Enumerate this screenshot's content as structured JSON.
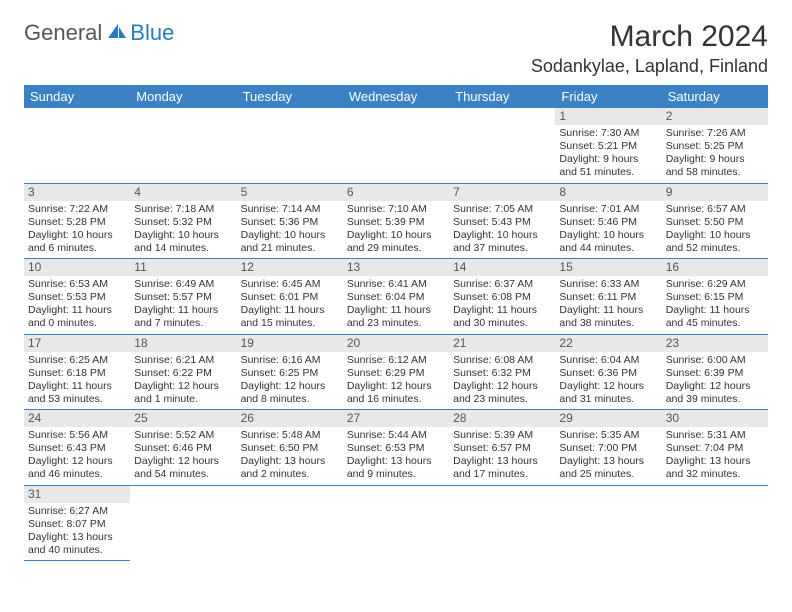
{
  "logo": {
    "part1": "General",
    "part2": "Blue"
  },
  "title": "March 2024",
  "location": "Sodankylae, Lapland, Finland",
  "colors": {
    "accent": "#3b82c4",
    "daynum_bg": "#e8e8e8",
    "text": "#333333"
  },
  "day_headers": [
    "Sunday",
    "Monday",
    "Tuesday",
    "Wednesday",
    "Thursday",
    "Friday",
    "Saturday"
  ],
  "weeks": [
    [
      null,
      null,
      null,
      null,
      null,
      {
        "n": "1",
        "sr": "Sunrise: 7:30 AM",
        "ss": "Sunset: 5:21 PM",
        "d1": "Daylight: 9 hours",
        "d2": "and 51 minutes."
      },
      {
        "n": "2",
        "sr": "Sunrise: 7:26 AM",
        "ss": "Sunset: 5:25 PM",
        "d1": "Daylight: 9 hours",
        "d2": "and 58 minutes."
      }
    ],
    [
      {
        "n": "3",
        "sr": "Sunrise: 7:22 AM",
        "ss": "Sunset: 5:28 PM",
        "d1": "Daylight: 10 hours",
        "d2": "and 6 minutes."
      },
      {
        "n": "4",
        "sr": "Sunrise: 7:18 AM",
        "ss": "Sunset: 5:32 PM",
        "d1": "Daylight: 10 hours",
        "d2": "and 14 minutes."
      },
      {
        "n": "5",
        "sr": "Sunrise: 7:14 AM",
        "ss": "Sunset: 5:36 PM",
        "d1": "Daylight: 10 hours",
        "d2": "and 21 minutes."
      },
      {
        "n": "6",
        "sr": "Sunrise: 7:10 AM",
        "ss": "Sunset: 5:39 PM",
        "d1": "Daylight: 10 hours",
        "d2": "and 29 minutes."
      },
      {
        "n": "7",
        "sr": "Sunrise: 7:05 AM",
        "ss": "Sunset: 5:43 PM",
        "d1": "Daylight: 10 hours",
        "d2": "and 37 minutes."
      },
      {
        "n": "8",
        "sr": "Sunrise: 7:01 AM",
        "ss": "Sunset: 5:46 PM",
        "d1": "Daylight: 10 hours",
        "d2": "and 44 minutes."
      },
      {
        "n": "9",
        "sr": "Sunrise: 6:57 AM",
        "ss": "Sunset: 5:50 PM",
        "d1": "Daylight: 10 hours",
        "d2": "and 52 minutes."
      }
    ],
    [
      {
        "n": "10",
        "sr": "Sunrise: 6:53 AM",
        "ss": "Sunset: 5:53 PM",
        "d1": "Daylight: 11 hours",
        "d2": "and 0 minutes."
      },
      {
        "n": "11",
        "sr": "Sunrise: 6:49 AM",
        "ss": "Sunset: 5:57 PM",
        "d1": "Daylight: 11 hours",
        "d2": "and 7 minutes."
      },
      {
        "n": "12",
        "sr": "Sunrise: 6:45 AM",
        "ss": "Sunset: 6:01 PM",
        "d1": "Daylight: 11 hours",
        "d2": "and 15 minutes."
      },
      {
        "n": "13",
        "sr": "Sunrise: 6:41 AM",
        "ss": "Sunset: 6:04 PM",
        "d1": "Daylight: 11 hours",
        "d2": "and 23 minutes."
      },
      {
        "n": "14",
        "sr": "Sunrise: 6:37 AM",
        "ss": "Sunset: 6:08 PM",
        "d1": "Daylight: 11 hours",
        "d2": "and 30 minutes."
      },
      {
        "n": "15",
        "sr": "Sunrise: 6:33 AM",
        "ss": "Sunset: 6:11 PM",
        "d1": "Daylight: 11 hours",
        "d2": "and 38 minutes."
      },
      {
        "n": "16",
        "sr": "Sunrise: 6:29 AM",
        "ss": "Sunset: 6:15 PM",
        "d1": "Daylight: 11 hours",
        "d2": "and 45 minutes."
      }
    ],
    [
      {
        "n": "17",
        "sr": "Sunrise: 6:25 AM",
        "ss": "Sunset: 6:18 PM",
        "d1": "Daylight: 11 hours",
        "d2": "and 53 minutes."
      },
      {
        "n": "18",
        "sr": "Sunrise: 6:21 AM",
        "ss": "Sunset: 6:22 PM",
        "d1": "Daylight: 12 hours",
        "d2": "and 1 minute."
      },
      {
        "n": "19",
        "sr": "Sunrise: 6:16 AM",
        "ss": "Sunset: 6:25 PM",
        "d1": "Daylight: 12 hours",
        "d2": "and 8 minutes."
      },
      {
        "n": "20",
        "sr": "Sunrise: 6:12 AM",
        "ss": "Sunset: 6:29 PM",
        "d1": "Daylight: 12 hours",
        "d2": "and 16 minutes."
      },
      {
        "n": "21",
        "sr": "Sunrise: 6:08 AM",
        "ss": "Sunset: 6:32 PM",
        "d1": "Daylight: 12 hours",
        "d2": "and 23 minutes."
      },
      {
        "n": "22",
        "sr": "Sunrise: 6:04 AM",
        "ss": "Sunset: 6:36 PM",
        "d1": "Daylight: 12 hours",
        "d2": "and 31 minutes."
      },
      {
        "n": "23",
        "sr": "Sunrise: 6:00 AM",
        "ss": "Sunset: 6:39 PM",
        "d1": "Daylight: 12 hours",
        "d2": "and 39 minutes."
      }
    ],
    [
      {
        "n": "24",
        "sr": "Sunrise: 5:56 AM",
        "ss": "Sunset: 6:43 PM",
        "d1": "Daylight: 12 hours",
        "d2": "and 46 minutes."
      },
      {
        "n": "25",
        "sr": "Sunrise: 5:52 AM",
        "ss": "Sunset: 6:46 PM",
        "d1": "Daylight: 12 hours",
        "d2": "and 54 minutes."
      },
      {
        "n": "26",
        "sr": "Sunrise: 5:48 AM",
        "ss": "Sunset: 6:50 PM",
        "d1": "Daylight: 13 hours",
        "d2": "and 2 minutes."
      },
      {
        "n": "27",
        "sr": "Sunrise: 5:44 AM",
        "ss": "Sunset: 6:53 PM",
        "d1": "Daylight: 13 hours",
        "d2": "and 9 minutes."
      },
      {
        "n": "28",
        "sr": "Sunrise: 5:39 AM",
        "ss": "Sunset: 6:57 PM",
        "d1": "Daylight: 13 hours",
        "d2": "and 17 minutes."
      },
      {
        "n": "29",
        "sr": "Sunrise: 5:35 AM",
        "ss": "Sunset: 7:00 PM",
        "d1": "Daylight: 13 hours",
        "d2": "and 25 minutes."
      },
      {
        "n": "30",
        "sr": "Sunrise: 5:31 AM",
        "ss": "Sunset: 7:04 PM",
        "d1": "Daylight: 13 hours",
        "d2": "and 32 minutes."
      }
    ],
    [
      {
        "n": "31",
        "sr": "Sunrise: 6:27 AM",
        "ss": "Sunset: 8:07 PM",
        "d1": "Daylight: 13 hours",
        "d2": "and 40 minutes."
      },
      null,
      null,
      null,
      null,
      null,
      null
    ]
  ]
}
